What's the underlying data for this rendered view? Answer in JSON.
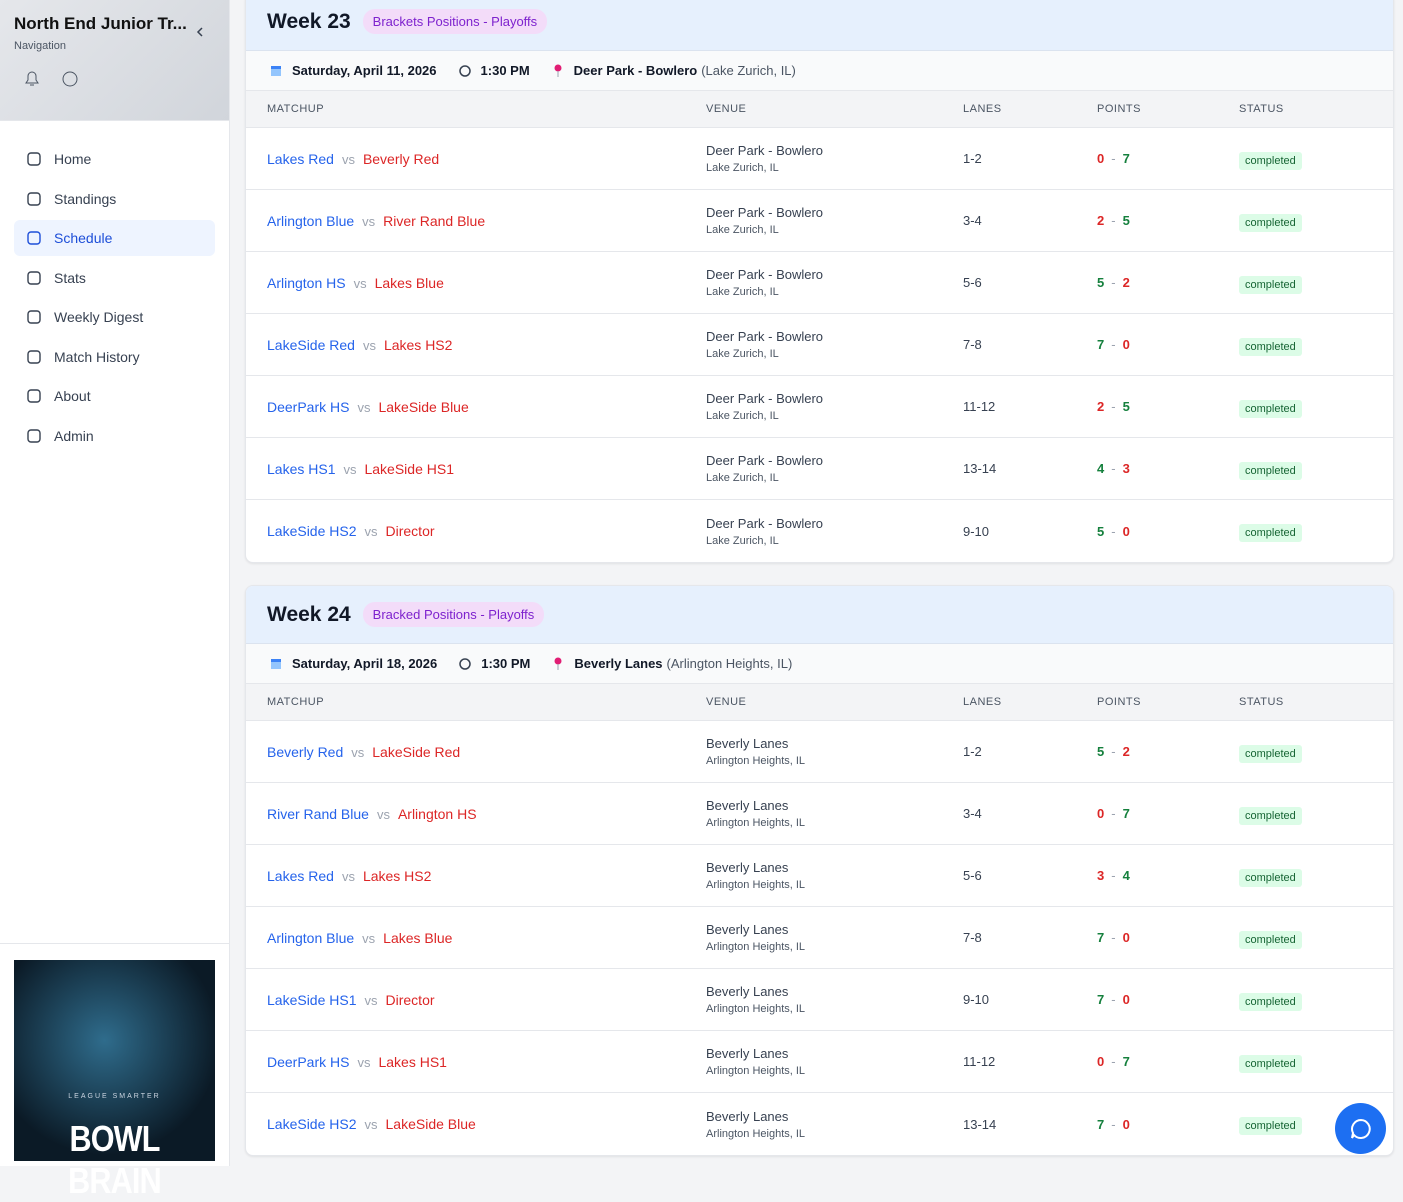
{
  "sidebar": {
    "title": "North End Junior Tr...",
    "subtitle": "Navigation",
    "nav": [
      "Home",
      "Standings",
      "Schedule",
      "Stats",
      "Weekly Digest",
      "Match History",
      "About",
      "Admin"
    ],
    "active": 2,
    "logo": {
      "tagline": "LEAGUE SMARTER",
      "name": "BOWL BRAIN"
    }
  },
  "labels": {
    "vs": "vs",
    "dash": "-"
  },
  "weeks": [
    {
      "title": "Week 23",
      "badge": "Brackets Positions - Playoffs",
      "date": "Saturday, April 11, 2026",
      "time": "1:30 PM",
      "venue": "Deer Park - Bowlero",
      "location": "(Lake Zurich, IL)",
      "columns": [
        "MATCHUP",
        "VENUE",
        "LANES",
        "POINTS",
        "STATUS"
      ],
      "matches": [
        {
          "home": "Lakes Red",
          "away": "Beverly Red",
          "venue": "Deer Park - Bowlero",
          "city": "Lake Zurich, IL",
          "lanes": "1-2",
          "home_points": 0,
          "away_points": 7,
          "status": "completed"
        },
        {
          "home": "Arlington Blue",
          "away": "River Rand Blue",
          "venue": "Deer Park - Bowlero",
          "city": "Lake Zurich, IL",
          "lanes": "3-4",
          "home_points": 2,
          "away_points": 5,
          "status": "completed"
        },
        {
          "home": "Arlington HS",
          "away": "Lakes Blue",
          "venue": "Deer Park - Bowlero",
          "city": "Lake Zurich, IL",
          "lanes": "5-6",
          "home_points": 5,
          "away_points": 2,
          "status": "completed"
        },
        {
          "home": "LakeSide Red",
          "away": "Lakes HS2",
          "venue": "Deer Park - Bowlero",
          "city": "Lake Zurich, IL",
          "lanes": "7-8",
          "home_points": 7,
          "away_points": 0,
          "status": "completed"
        },
        {
          "home": "DeerPark HS",
          "away": "LakeSide Blue",
          "venue": "Deer Park - Bowlero",
          "city": "Lake Zurich, IL",
          "lanes": "11-12",
          "home_points": 2,
          "away_points": 5,
          "status": "completed"
        },
        {
          "home": "Lakes HS1",
          "away": "LakeSide HS1",
          "venue": "Deer Park - Bowlero",
          "city": "Lake Zurich, IL",
          "lanes": "13-14",
          "home_points": 4,
          "away_points": 3,
          "status": "completed"
        },
        {
          "home": "LakeSide HS2",
          "away": "Director",
          "venue": "Deer Park - Bowlero",
          "city": "Lake Zurich, IL",
          "lanes": "9-10",
          "home_points": 5,
          "away_points": 0,
          "status": "completed"
        }
      ]
    },
    {
      "title": "Week 24",
      "badge": "Bracked Positions - Playoffs",
      "date": "Saturday, April 18, 2026",
      "time": "1:30 PM",
      "venue": "Beverly Lanes",
      "location": "(Arlington Heights, IL)",
      "columns": [
        "MATCHUP",
        "VENUE",
        "LANES",
        "POINTS",
        "STATUS"
      ],
      "matches": [
        {
          "home": "Beverly Red",
          "away": "LakeSide Red",
          "venue": "Beverly Lanes",
          "city": "Arlington Heights, IL",
          "lanes": "1-2",
          "home_points": 5,
          "away_points": 2,
          "status": "completed"
        },
        {
          "home": "River Rand Blue",
          "away": "Arlington HS",
          "venue": "Beverly Lanes",
          "city": "Arlington Heights, IL",
          "lanes": "3-4",
          "home_points": 0,
          "away_points": 7,
          "status": "completed"
        },
        {
          "home": "Lakes Red",
          "away": "Lakes HS2",
          "venue": "Beverly Lanes",
          "city": "Arlington Heights, IL",
          "lanes": "5-6",
          "home_points": 3,
          "away_points": 4,
          "status": "completed"
        },
        {
          "home": "Arlington Blue",
          "away": "Lakes Blue",
          "venue": "Beverly Lanes",
          "city": "Arlington Heights, IL",
          "lanes": "7-8",
          "home_points": 7,
          "away_points": 0,
          "status": "completed"
        },
        {
          "home": "LakeSide HS1",
          "away": "Director",
          "venue": "Beverly Lanes",
          "city": "Arlington Heights, IL",
          "lanes": "9-10",
          "home_points": 7,
          "away_points": 0,
          "status": "completed"
        },
        {
          "home": "DeerPark HS",
          "away": "Lakes HS1",
          "venue": "Beverly Lanes",
          "city": "Arlington Heights, IL",
          "lanes": "11-12",
          "home_points": 0,
          "away_points": 7,
          "status": "completed"
        },
        {
          "home": "LakeSide HS2",
          "away": "LakeSide Blue",
          "venue": "Beverly Lanes",
          "city": "Arlington Heights, IL",
          "lanes": "13-14",
          "home_points": 7,
          "away_points": 0,
          "status": "completed"
        }
      ]
    }
  ]
}
